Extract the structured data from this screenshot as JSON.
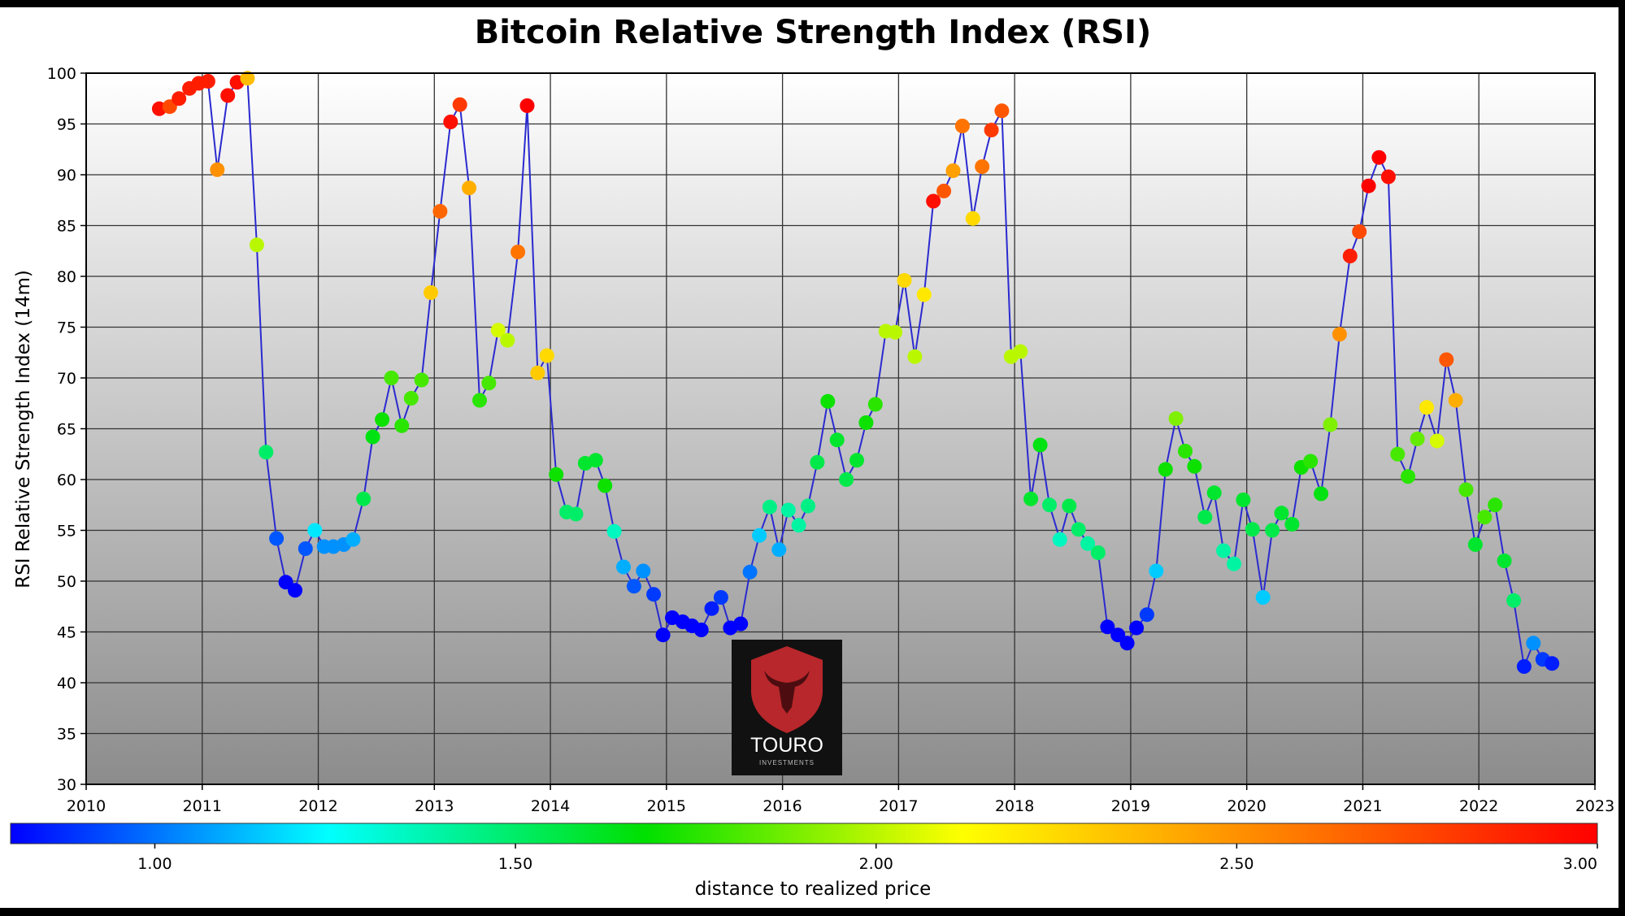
{
  "chart_data": {
    "type": "scatter",
    "title": "Bitcoin Relative Strength Index (RSI)",
    "ylabel": "RSI Relative Strength Index (14m)",
    "xlabel": "",
    "xlim": [
      2010,
      2023
    ],
    "ylim": [
      30,
      100
    ],
    "x_ticks": [
      "2010",
      "2011",
      "2012",
      "2013",
      "2014",
      "2015",
      "2016",
      "2017",
      "2018",
      "2019",
      "2020",
      "2021",
      "2022",
      "2023"
    ],
    "y_ticks": [
      "30",
      "35",
      "40",
      "45",
      "50",
      "55",
      "60",
      "65",
      "70",
      "75",
      "80",
      "85",
      "90",
      "95",
      "100"
    ],
    "grid": true,
    "background": "vertical gradient white to grey",
    "line_color": "#2222cc",
    "series": [
      {
        "values": [
          {
            "x": 2010.63,
            "y": 96.5,
            "c": 2.95
          },
          {
            "x": 2010.72,
            "y": 96.7,
            "c": 2.75
          },
          {
            "x": 2010.8,
            "y": 97.5,
            "c": 2.9
          },
          {
            "x": 2010.89,
            "y": 98.5,
            "c": 2.9
          },
          {
            "x": 2010.97,
            "y": 99.0,
            "c": 2.9
          },
          {
            "x": 2011.05,
            "y": 99.2,
            "c": 2.9
          },
          {
            "x": 2011.13,
            "y": 90.5,
            "c": 2.5
          },
          {
            "x": 2011.22,
            "y": 97.8,
            "c": 2.95
          },
          {
            "x": 2011.3,
            "y": 99.1,
            "c": 2.95
          },
          {
            "x": 2011.39,
            "y": 99.5,
            "c": 2.35
          },
          {
            "x": 2011.47,
            "y": 83.1,
            "c": 2.0
          },
          {
            "x": 2011.55,
            "y": 62.7,
            "c": 1.5
          },
          {
            "x": 2011.64,
            "y": 54.2,
            "c": 0.95
          },
          {
            "x": 2011.72,
            "y": 49.9,
            "c": 0.8
          },
          {
            "x": 2011.8,
            "y": 49.1,
            "c": 0.8
          },
          {
            "x": 2011.89,
            "y": 53.2,
            "c": 0.95
          },
          {
            "x": 2011.97,
            "y": 55.0,
            "c": 1.2
          },
          {
            "x": 2012.05,
            "y": 53.4,
            "c": 1.05
          },
          {
            "x": 2012.13,
            "y": 53.4,
            "c": 1.05
          },
          {
            "x": 2012.22,
            "y": 53.6,
            "c": 1.05
          },
          {
            "x": 2012.3,
            "y": 54.1,
            "c": 1.1
          },
          {
            "x": 2012.39,
            "y": 58.1,
            "c": 1.55
          },
          {
            "x": 2012.47,
            "y": 64.2,
            "c": 1.65
          },
          {
            "x": 2012.55,
            "y": 65.9,
            "c": 1.7
          },
          {
            "x": 2012.63,
            "y": 70.0,
            "c": 1.8
          },
          {
            "x": 2012.72,
            "y": 65.3,
            "c": 1.75
          },
          {
            "x": 2012.8,
            "y": 68.0,
            "c": 1.8
          },
          {
            "x": 2012.89,
            "y": 69.8,
            "c": 1.8
          },
          {
            "x": 2012.97,
            "y": 78.4,
            "c": 2.3
          },
          {
            "x": 2013.05,
            "y": 86.4,
            "c": 2.65
          },
          {
            "x": 2013.14,
            "y": 95.2,
            "c": 2.95
          },
          {
            "x": 2013.22,
            "y": 96.9,
            "c": 2.8
          },
          {
            "x": 2013.3,
            "y": 88.7,
            "c": 2.4
          },
          {
            "x": 2013.39,
            "y": 67.8,
            "c": 1.75
          },
          {
            "x": 2013.47,
            "y": 69.5,
            "c": 1.8
          },
          {
            "x": 2013.55,
            "y": 74.7,
            "c": 2.05
          },
          {
            "x": 2013.63,
            "y": 73.7,
            "c": 2.0
          },
          {
            "x": 2013.72,
            "y": 82.4,
            "c": 2.6
          },
          {
            "x": 2013.8,
            "y": 96.8,
            "c": 3.0
          },
          {
            "x": 2013.89,
            "y": 70.5,
            "c": 2.3
          },
          {
            "x": 2013.97,
            "y": 72.2,
            "c": 2.25
          },
          {
            "x": 2014.05,
            "y": 60.5,
            "c": 1.7
          },
          {
            "x": 2014.14,
            "y": 56.8,
            "c": 1.5
          },
          {
            "x": 2014.22,
            "y": 56.6,
            "c": 1.5
          },
          {
            "x": 2014.3,
            "y": 61.6,
            "c": 1.6
          },
          {
            "x": 2014.39,
            "y": 61.9,
            "c": 1.6
          },
          {
            "x": 2014.47,
            "y": 59.4,
            "c": 1.7
          },
          {
            "x": 2014.55,
            "y": 54.9,
            "c": 1.35
          },
          {
            "x": 2014.63,
            "y": 51.4,
            "c": 1.1
          },
          {
            "x": 2014.72,
            "y": 49.5,
            "c": 0.95
          },
          {
            "x": 2014.8,
            "y": 51.0,
            "c": 1.05
          },
          {
            "x": 2014.89,
            "y": 48.7,
            "c": 0.9
          },
          {
            "x": 2014.97,
            "y": 44.7,
            "c": 0.75
          },
          {
            "x": 2015.05,
            "y": 46.4,
            "c": 0.75
          },
          {
            "x": 2015.14,
            "y": 46.0,
            "c": 0.75
          },
          {
            "x": 2015.22,
            "y": 45.6,
            "c": 0.75
          },
          {
            "x": 2015.3,
            "y": 45.2,
            "c": 0.75
          },
          {
            "x": 2015.39,
            "y": 47.3,
            "c": 0.85
          },
          {
            "x": 2015.47,
            "y": 48.4,
            "c": 0.9
          },
          {
            "x": 2015.55,
            "y": 45.4,
            "c": 0.75
          },
          {
            "x": 2015.64,
            "y": 45.8,
            "c": 0.75
          },
          {
            "x": 2015.72,
            "y": 50.9,
            "c": 1.0
          },
          {
            "x": 2015.8,
            "y": 54.5,
            "c": 1.15
          },
          {
            "x": 2015.89,
            "y": 57.3,
            "c": 1.45
          },
          {
            "x": 2015.97,
            "y": 53.1,
            "c": 1.1
          },
          {
            "x": 2016.05,
            "y": 57.0,
            "c": 1.4
          },
          {
            "x": 2016.14,
            "y": 55.5,
            "c": 1.4
          },
          {
            "x": 2016.22,
            "y": 57.4,
            "c": 1.45
          },
          {
            "x": 2016.3,
            "y": 61.7,
            "c": 1.55
          },
          {
            "x": 2016.39,
            "y": 67.7,
            "c": 1.7
          },
          {
            "x": 2016.47,
            "y": 63.9,
            "c": 1.6
          },
          {
            "x": 2016.55,
            "y": 60.0,
            "c": 1.55
          },
          {
            "x": 2016.64,
            "y": 61.9,
            "c": 1.6
          },
          {
            "x": 2016.72,
            "y": 65.6,
            "c": 1.7
          },
          {
            "x": 2016.8,
            "y": 67.4,
            "c": 1.75
          },
          {
            "x": 2016.89,
            "y": 74.6,
            "c": 2.0
          },
          {
            "x": 2016.97,
            "y": 74.5,
            "c": 2.0
          },
          {
            "x": 2017.05,
            "y": 79.6,
            "c": 2.25
          },
          {
            "x": 2017.14,
            "y": 72.1,
            "c": 2.0
          },
          {
            "x": 2017.22,
            "y": 78.2,
            "c": 2.2
          },
          {
            "x": 2017.3,
            "y": 87.4,
            "c": 2.95
          },
          {
            "x": 2017.39,
            "y": 88.4,
            "c": 2.7
          },
          {
            "x": 2017.47,
            "y": 90.4,
            "c": 2.45
          },
          {
            "x": 2017.55,
            "y": 94.8,
            "c": 2.6
          },
          {
            "x": 2017.64,
            "y": 85.7,
            "c": 2.25
          },
          {
            "x": 2017.72,
            "y": 90.8,
            "c": 2.6
          },
          {
            "x": 2017.8,
            "y": 94.4,
            "c": 2.8
          },
          {
            "x": 2017.89,
            "y": 96.3,
            "c": 2.7
          },
          {
            "x": 2017.97,
            "y": 72.1,
            "c": 2.0
          },
          {
            "x": 2018.05,
            "y": 72.6,
            "c": 2.0
          },
          {
            "x": 2018.14,
            "y": 58.1,
            "c": 1.6
          },
          {
            "x": 2018.22,
            "y": 63.4,
            "c": 1.65
          },
          {
            "x": 2018.3,
            "y": 57.5,
            "c": 1.5
          },
          {
            "x": 2018.39,
            "y": 54.1,
            "c": 1.35
          },
          {
            "x": 2018.47,
            "y": 57.4,
            "c": 1.55
          },
          {
            "x": 2018.55,
            "y": 55.1,
            "c": 1.5
          },
          {
            "x": 2018.63,
            "y": 53.7,
            "c": 1.4
          },
          {
            "x": 2018.72,
            "y": 52.8,
            "c": 1.5
          },
          {
            "x": 2018.8,
            "y": 45.5,
            "c": 0.8
          },
          {
            "x": 2018.89,
            "y": 44.7,
            "c": 0.8
          },
          {
            "x": 2018.97,
            "y": 43.9,
            "c": 0.75
          },
          {
            "x": 2019.05,
            "y": 45.4,
            "c": 0.8
          },
          {
            "x": 2019.14,
            "y": 46.7,
            "c": 0.9
          },
          {
            "x": 2019.22,
            "y": 51.0,
            "c": 1.15
          },
          {
            "x": 2019.3,
            "y": 61.0,
            "c": 1.7
          },
          {
            "x": 2019.39,
            "y": 66.0,
            "c": 1.9
          },
          {
            "x": 2019.47,
            "y": 62.8,
            "c": 1.75
          },
          {
            "x": 2019.55,
            "y": 61.3,
            "c": 1.7
          },
          {
            "x": 2019.64,
            "y": 56.3,
            "c": 1.55
          },
          {
            "x": 2019.72,
            "y": 58.7,
            "c": 1.6
          },
          {
            "x": 2019.8,
            "y": 53.0,
            "c": 1.4
          },
          {
            "x": 2019.89,
            "y": 51.7,
            "c": 1.4
          },
          {
            "x": 2019.97,
            "y": 58.0,
            "c": 1.6
          },
          {
            "x": 2020.05,
            "y": 55.1,
            "c": 1.55
          },
          {
            "x": 2020.14,
            "y": 48.4,
            "c": 1.15
          },
          {
            "x": 2020.22,
            "y": 55.0,
            "c": 1.55
          },
          {
            "x": 2020.3,
            "y": 56.7,
            "c": 1.6
          },
          {
            "x": 2020.39,
            "y": 55.6,
            "c": 1.6
          },
          {
            "x": 2020.47,
            "y": 61.2,
            "c": 1.7
          },
          {
            "x": 2020.55,
            "y": 61.8,
            "c": 1.75
          },
          {
            "x": 2020.64,
            "y": 58.6,
            "c": 1.65
          },
          {
            "x": 2020.72,
            "y": 65.4,
            "c": 1.9
          },
          {
            "x": 2020.8,
            "y": 74.3,
            "c": 2.5
          },
          {
            "x": 2020.89,
            "y": 82.0,
            "c": 2.9
          },
          {
            "x": 2020.97,
            "y": 84.4,
            "c": 2.75
          },
          {
            "x": 2021.05,
            "y": 88.9,
            "c": 3.0
          },
          {
            "x": 2021.14,
            "y": 91.7,
            "c": 3.0
          },
          {
            "x": 2021.22,
            "y": 89.8,
            "c": 2.95
          },
          {
            "x": 2021.3,
            "y": 62.5,
            "c": 1.8
          },
          {
            "x": 2021.39,
            "y": 60.3,
            "c": 1.75
          },
          {
            "x": 2021.47,
            "y": 64.0,
            "c": 1.85
          },
          {
            "x": 2021.55,
            "y": 67.1,
            "c": 2.2
          },
          {
            "x": 2021.64,
            "y": 63.8,
            "c": 2.05
          },
          {
            "x": 2021.72,
            "y": 71.8,
            "c": 2.7
          },
          {
            "x": 2021.8,
            "y": 67.8,
            "c": 2.4
          },
          {
            "x": 2021.89,
            "y": 59.0,
            "c": 1.8
          },
          {
            "x": 2021.97,
            "y": 53.6,
            "c": 1.6
          },
          {
            "x": 2022.05,
            "y": 56.3,
            "c": 1.8
          },
          {
            "x": 2022.14,
            "y": 57.5,
            "c": 1.75
          },
          {
            "x": 2022.22,
            "y": 52.0,
            "c": 1.6
          },
          {
            "x": 2022.3,
            "y": 48.1,
            "c": 1.5
          },
          {
            "x": 2022.39,
            "y": 41.6,
            "c": 0.85
          },
          {
            "x": 2022.47,
            "y": 43.9,
            "c": 1.05
          },
          {
            "x": 2022.55,
            "y": 42.3,
            "c": 0.9
          },
          {
            "x": 2022.63,
            "y": 41.9,
            "c": 0.85
          }
        ]
      }
    ],
    "colorbar": {
      "label": "distance to realized price",
      "range": [
        0.8,
        3.0
      ],
      "ticks": [
        "1.00",
        "1.50",
        "2.00",
        "2.50",
        "3.00"
      ],
      "tick_values": [
        1.0,
        1.5,
        2.0,
        2.5,
        3.0
      ],
      "colormap": [
        "#0000ff",
        "#00ffff",
        "#00e000",
        "#ffff00",
        "#ff8000",
        "#ff0000"
      ]
    }
  },
  "logo": {
    "brand": "TOURO",
    "subtext": "INVESTMENTS",
    "bg_color": "#111111",
    "shield_color": "#b8272b"
  }
}
